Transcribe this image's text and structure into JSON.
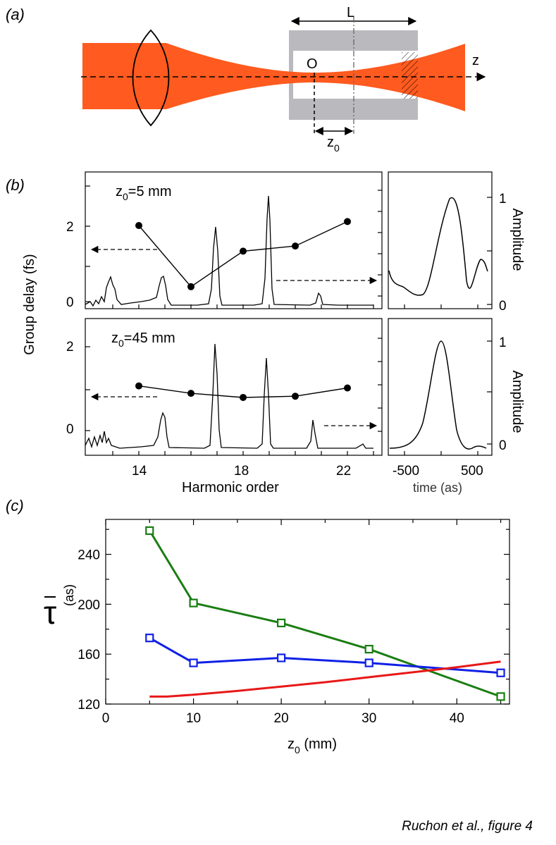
{
  "panel_a": {
    "label": "(a)",
    "length_label": "L",
    "origin_label": "O",
    "axis_label": "z",
    "z0_label_main": "z",
    "z0_label_sub": "0"
  },
  "panel_b": {
    "label": "(b)",
    "ylabel": "Group delay (fs)",
    "xlabel": "Harmonic order",
    "right_xlabel": "time (as)",
    "right_ylabel": "Amplitude",
    "top": {
      "z0_main": "z",
      "z0_sub": "0",
      "z0_value": "=5 mm"
    },
    "bottom": {
      "z0_main": "z",
      "z0_sub": "0",
      "z0_value": "=45 mm"
    }
  },
  "panel_c": {
    "label": "(c)",
    "ylabel_symbol": "τ",
    "ylabel_unit": "(as)",
    "xlabel_main": "z",
    "xlabel_sub": "0",
    "xlabel_unit": " (mm)"
  },
  "caption": "Ruchon et al., figure 4",
  "colors": {
    "beam": "#ff5a1f",
    "cell": "#b9b9be",
    "green": "#1a7d12",
    "blue": "#1020e6",
    "red": "#e81818"
  },
  "chart_data": [
    {
      "type": "line",
      "panel": "(b) top left",
      "xlabel": "Harmonic order",
      "ylabel": "Group delay (fs)",
      "x_ticks": [
        "14",
        "18",
        "22"
      ],
      "y_ticks": [
        "0",
        "2"
      ],
      "ylim": [
        -0.1,
        3.4
      ],
      "xlim": [
        11.9,
        23.7
      ],
      "series": [
        {
          "x": [
            14,
            16,
            18,
            20,
            22
          ],
          "values": [
            2.0,
            0.45,
            1.35,
            1.48,
            2.1
          ]
        }
      ]
    },
    {
      "type": "line",
      "panel": "(b) top right",
      "xlabel": "time (as)",
      "ylabel": "Amplitude",
      "x_ticks": [
        "-500",
        "500"
      ],
      "y_ticks": [
        "0",
        "1"
      ]
    },
    {
      "type": "line",
      "panel": "(b) bottom left",
      "xlabel": "Harmonic order",
      "ylabel": "Group delay (fs)",
      "x_ticks": [
        "14",
        "18",
        "22"
      ],
      "y_ticks": [
        "0",
        "2"
      ],
      "ylim": [
        -0.5,
        2.6
      ],
      "xlim": [
        11.9,
        23.7
      ],
      "series": [
        {
          "x": [
            14,
            16,
            18,
            20,
            22
          ],
          "values": [
            1.05,
            0.87,
            0.77,
            0.8,
            1.0
          ]
        }
      ]
    },
    {
      "type": "line",
      "panel": "(b) bottom right",
      "xlabel": "time (as)",
      "ylabel": "Amplitude",
      "x_ticks": [
        "-500",
        "500"
      ],
      "y_ticks": [
        "0",
        "1"
      ]
    },
    {
      "type": "line",
      "panel": "(c)",
      "xlabel": "z0 (mm)",
      "ylabel": "τ (as)",
      "xlim": [
        0,
        46
      ],
      "ylim": [
        120,
        268
      ],
      "x_ticks": [
        0,
        10,
        20,
        30,
        40
      ],
      "y_ticks": [
        120,
        160,
        200,
        240
      ],
      "series": [
        {
          "color": "green",
          "marker": "square",
          "x": [
            5,
            10,
            20,
            30,
            45
          ],
          "values": [
            259,
            201,
            185,
            164,
            126
          ]
        },
        {
          "color": "blue",
          "marker": "square",
          "x": [
            5,
            10,
            20,
            30,
            45
          ],
          "values": [
            173,
            153,
            157,
            153,
            145
          ]
        },
        {
          "color": "red",
          "marker": "none",
          "x": [
            5,
            7,
            10,
            15,
            20,
            25,
            30,
            35,
            40,
            45
          ],
          "values": [
            126,
            126,
            127.5,
            130.5,
            134,
            137.5,
            141.5,
            145.5,
            149.5,
            154
          ]
        }
      ]
    }
  ]
}
